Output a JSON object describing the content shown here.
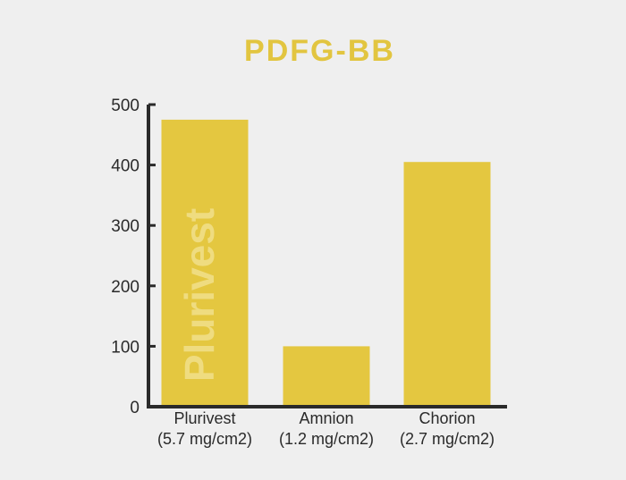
{
  "chart_data": {
    "type": "bar",
    "title": "PDFG-BB",
    "categories": [
      {
        "line1": "Plurivest",
        "line2": "(5.7 mg/cm2)"
      },
      {
        "line1": "Amnion",
        "line2": "(1.2 mg/cm2)"
      },
      {
        "line1": "Chorion",
        "line2": "(2.7 mg/cm2)"
      }
    ],
    "values": [
      475,
      100,
      405
    ],
    "ylim": [
      0,
      500
    ],
    "yticks": [
      0,
      100,
      200,
      300,
      400,
      500
    ],
    "xlabel": "",
    "ylabel": "",
    "grid": false,
    "bar_color": "#e4c740",
    "title_color": "#e2c540",
    "axis_color": "#2a2a2a",
    "watermark": "Plurivest"
  }
}
